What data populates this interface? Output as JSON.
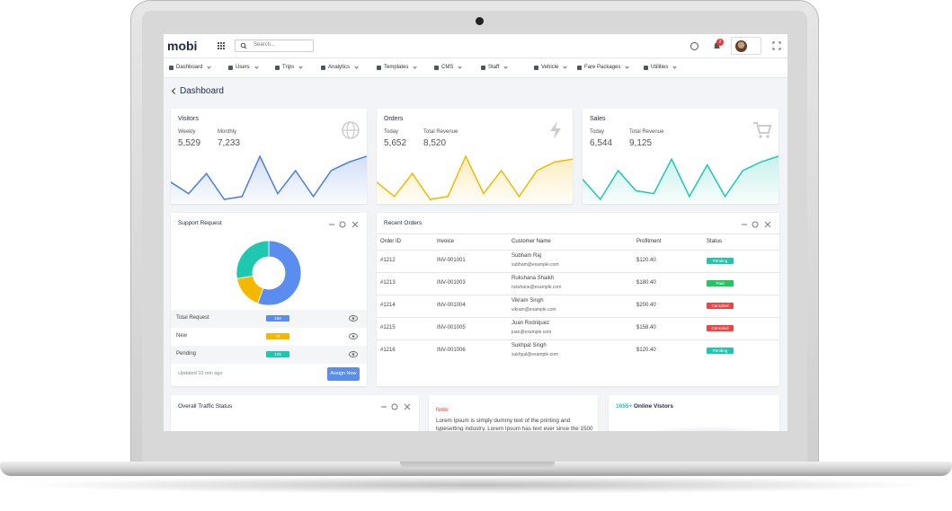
{
  "header": {
    "logo": "mobi",
    "search": "Search...",
    "notification_count": "2"
  },
  "nav": [
    "Dashboard",
    "Users",
    "Trips",
    "Analytics",
    "Templates",
    "CMS",
    "Staff",
    "Vehicle",
    "Fare Packages",
    "Utilities"
  ],
  "page_title": "Dashboard",
  "stat_cards": [
    {
      "title": "Visitors",
      "items": [
        {
          "label": "Weekly",
          "value": "5,529"
        },
        {
          "label": "Monthly",
          "value": "7,233"
        }
      ],
      "color": "#4a7fe0",
      "sparkline": [
        40,
        20,
        55,
        10,
        15,
        85,
        20,
        60,
        15,
        60,
        75,
        85
      ]
    },
    {
      "title": "Orders",
      "items": [
        {
          "label": "Today",
          "value": "5,652"
        },
        {
          "label": "Total Revenue",
          "value": "8,520"
        }
      ],
      "color": "#f5b800",
      "sparkline": [
        40,
        15,
        55,
        10,
        15,
        85,
        20,
        60,
        15,
        60,
        75,
        80
      ]
    },
    {
      "title": "Sales",
      "items": [
        {
          "label": "Today",
          "value": "6,544"
        },
        {
          "label": "Total Revenue",
          "value": "9,125"
        }
      ],
      "color": "#1ec8b0",
      "sparkline": [
        45,
        10,
        60,
        25,
        20,
        80,
        15,
        70,
        15,
        60,
        75,
        85
      ]
    }
  ],
  "support_request": {
    "title": "Support Request",
    "rows": [
      {
        "label": "Total Request",
        "value": 250,
        "color": "#5b8def"
      },
      {
        "label": "New",
        "value": 75,
        "color": "#f5b800"
      },
      {
        "label": "Pending",
        "value": 125,
        "color": "#1ec8b0"
      }
    ],
    "updated": "Updated 10 min ago",
    "button": "Assign Now"
  },
  "recent_orders": {
    "title": "Recent Orders",
    "columns": [
      "Order ID",
      "Invoice",
      "Customer Name",
      "Profitment",
      "Status"
    ],
    "rows": [
      {
        "id": "#1212",
        "invoice": "INV-001001",
        "name": "Subham Raj",
        "email": "subham@example.com",
        "profit": "$120.40",
        "status": "Pending",
        "status_color": "#1ec8b0"
      },
      {
        "id": "#1213",
        "invoice": "INV-001003",
        "name": "Rukshana Shaikh",
        "email": "rukshana@example.com",
        "profit": "$180.40",
        "status": "Paid",
        "status_color": "#22c55e"
      },
      {
        "id": "#1214",
        "invoice": "INV-001004",
        "name": "Vikram Singh",
        "email": "vikram@example.com",
        "profit": "$200.40",
        "status": "Canceled",
        "status_color": "#ef4444"
      },
      {
        "id": "#1215",
        "invoice": "INV-001005",
        "name": "Juan Rodriquez",
        "email": "juan@example.com",
        "profit": "$158.40",
        "status": "Canceled",
        "status_color": "#ef4444"
      },
      {
        "id": "#1216",
        "invoice": "INV-001006",
        "name": "Sukhpal Singh",
        "email": "sukhpal@example.com",
        "profit": "$120.40",
        "status": "Pending",
        "status_color": "#1ec8b0"
      }
    ]
  },
  "traffic": {
    "title": "Overall Traffic Status"
  },
  "note": {
    "label": "Note",
    "text": "Lorem Ipsum is simply dummy text of the printing and typesetting industry. Lorem Ipsum has text ever since the 1500"
  },
  "online": {
    "count": "1655+",
    "label": "Online Vistors"
  }
}
